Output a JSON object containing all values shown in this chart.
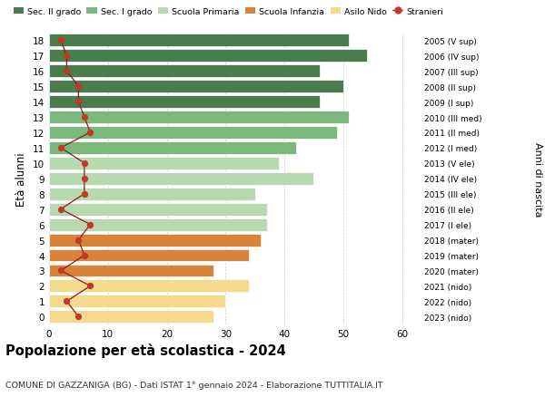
{
  "ages": [
    18,
    17,
    16,
    15,
    14,
    13,
    12,
    11,
    10,
    9,
    8,
    7,
    6,
    5,
    4,
    3,
    2,
    1,
    0
  ],
  "right_labels": [
    "2005 (V sup)",
    "2006 (IV sup)",
    "2007 (III sup)",
    "2008 (II sup)",
    "2009 (I sup)",
    "2010 (III med)",
    "2011 (II med)",
    "2012 (I med)",
    "2013 (V ele)",
    "2014 (IV ele)",
    "2015 (III ele)",
    "2016 (II ele)",
    "2017 (I ele)",
    "2018 (mater)",
    "2019 (mater)",
    "2020 (mater)",
    "2021 (nido)",
    "2022 (nido)",
    "2023 (nido)"
  ],
  "bar_values": [
    51,
    54,
    46,
    50,
    46,
    51,
    49,
    42,
    39,
    45,
    35,
    37,
    37,
    36,
    34,
    28,
    34,
    30,
    28
  ],
  "bar_colors": [
    "#4a7c4e",
    "#4a7c4e",
    "#4a7c4e",
    "#4a7c4e",
    "#4a7c4e",
    "#7ab87e",
    "#7ab87e",
    "#7ab87e",
    "#b8d9b0",
    "#b8d9b0",
    "#b8d9b0",
    "#b8d9b0",
    "#b8d9b0",
    "#d9823a",
    "#d9823a",
    "#d9823a",
    "#f5d98c",
    "#f5d98c",
    "#f5d98c"
  ],
  "stranieri_values": [
    2,
    3,
    3,
    5,
    5,
    6,
    7,
    2,
    6,
    6,
    6,
    2,
    7,
    5,
    6,
    2,
    7,
    3,
    5
  ],
  "legend_labels": [
    "Sec. II grado",
    "Sec. I grado",
    "Scuola Primaria",
    "Scuola Infanzia",
    "Asilo Nido",
    "Stranieri"
  ],
  "legend_colors": [
    "#4a7c4e",
    "#7ab87e",
    "#b8d9b0",
    "#d9823a",
    "#f5d98c",
    "#c0392b"
  ],
  "title": "Popolazione per età scolastica - 2024",
  "subtitle": "COMUNE DI GAZZANIGA (BG) - Dati ISTAT 1° gennaio 2024 - Elaborazione TUTTITALIA.IT",
  "ylabel": "Età alunni",
  "right_ylabel": "Anni di nascita",
  "xlim": [
    0,
    63
  ],
  "xticks": [
    0,
    10,
    20,
    30,
    40,
    50,
    60
  ],
  "bg_color": "#ffffff",
  "grid_color": "#cccccc"
}
